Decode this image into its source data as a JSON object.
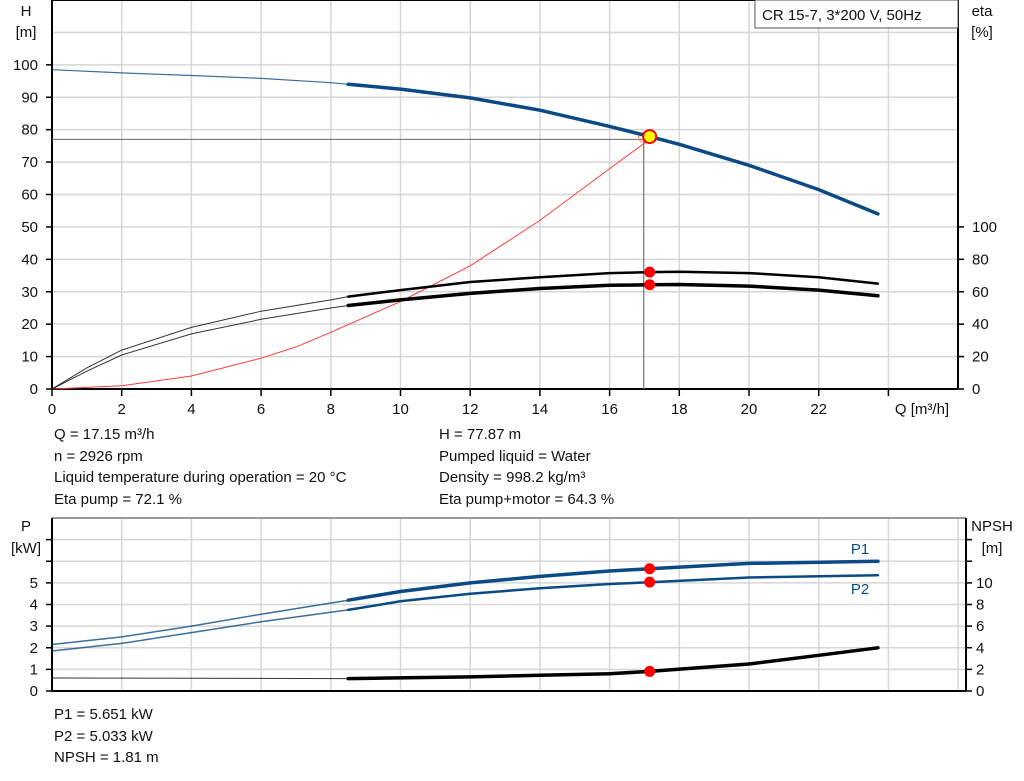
{
  "chart_data": [
    {
      "type": "line",
      "title_box": "CR 15-7, 3*200 V, 50Hz",
      "xlabel": "Q [m³/h]",
      "ylabel_left": [
        "H",
        "[m]"
      ],
      "ylabel_right": [
        "eta",
        "[%]"
      ],
      "xlim": [
        0,
        26
      ],
      "ylim_left": [
        0,
        120
      ],
      "ylim_right": [
        0,
        240
      ],
      "x_ticks": [
        0,
        2,
        4,
        6,
        8,
        10,
        12,
        14,
        16,
        18,
        20,
        22
      ],
      "y_ticks_left": [
        0,
        10,
        20,
        30,
        40,
        50,
        60,
        70,
        80,
        90,
        100
      ],
      "y_ticks_right": [
        0,
        20,
        40,
        60,
        80,
        100
      ],
      "grid": true,
      "duty_point": {
        "Q": 17.15,
        "H": 77.87,
        "eta_pump": 72.1,
        "eta_pump_motor": 64.3
      },
      "series": [
        {
          "key": "H",
          "axis": "left",
          "color": "#0b4a85",
          "x": [
            0,
            2,
            4,
            6,
            8,
            8.5,
            10,
            12,
            14,
            16,
            17.15,
            18,
            20,
            22,
            23.7
          ],
          "y": [
            98.5,
            97.5,
            96.7,
            95.8,
            94.5,
            94,
            92.5,
            89.8,
            86,
            81,
            77.87,
            75.5,
            69,
            61.5,
            54
          ]
        },
        {
          "key": "eta_pump",
          "axis": "right",
          "color": "#000000",
          "x": [
            0,
            1,
            2,
            4,
            6,
            8,
            8.5,
            10,
            12,
            14,
            16,
            17.15,
            18,
            20,
            22,
            23.7
          ],
          "y": [
            0,
            13,
            24,
            38,
            48,
            55,
            57,
            61,
            66,
            69,
            71.5,
            72.1,
            72.3,
            71.5,
            69,
            65
          ]
        },
        {
          "key": "eta_pump_motor",
          "axis": "right",
          "color": "#000000",
          "x": [
            0,
            1,
            2,
            4,
            6,
            8,
            8.5,
            10,
            12,
            14,
            16,
            17.15,
            18,
            20,
            22,
            23.7
          ],
          "y": [
            0,
            11,
            21,
            34,
            43,
            50,
            51.5,
            55,
            59,
            62,
            64,
            64.3,
            64.5,
            63.5,
            61,
            57.5
          ]
        },
        {
          "key": "system",
          "axis": "left",
          "color": "#ff3b3b",
          "x": [
            0,
            2,
            4,
            6,
            7,
            8,
            10,
            12,
            14,
            16,
            17.15
          ],
          "y": [
            0,
            1,
            4,
            9.5,
            13,
            17.5,
            27,
            38,
            52,
            68,
            77
          ]
        }
      ]
    },
    {
      "type": "line",
      "ylabel_left": [
        "P",
        "[kW]"
      ],
      "ylabel_right": [
        "NPSH",
        "[m]"
      ],
      "xlim": [
        0,
        26
      ],
      "ylim_left": [
        0,
        8
      ],
      "ylim_right": [
        0,
        16
      ],
      "y_ticks_left": [
        0,
        1,
        2,
        3,
        4,
        5
      ],
      "y_ticks_right": [
        0,
        2,
        4,
        6,
        8,
        10
      ],
      "grid": true,
      "series": [
        {
          "key": "P1",
          "name": "P1",
          "axis": "left",
          "color": "#0b4a85",
          "x": [
            0,
            2,
            4,
            6,
            8.5,
            10,
            12,
            14,
            16,
            17.15,
            20,
            23.7
          ],
          "y": [
            2.15,
            2.5,
            3.0,
            3.55,
            4.2,
            4.6,
            5.0,
            5.3,
            5.55,
            5.651,
            5.9,
            6.0
          ]
        },
        {
          "key": "P2",
          "name": "P2",
          "axis": "left",
          "color": "#0b4a85",
          "x": [
            0,
            2,
            4,
            6,
            8.5,
            10,
            12,
            14,
            16,
            17.15,
            20,
            23.7
          ],
          "y": [
            1.85,
            2.2,
            2.7,
            3.2,
            3.75,
            4.15,
            4.5,
            4.75,
            4.95,
            5.033,
            5.25,
            5.35
          ]
        },
        {
          "key": "NPSH",
          "axis": "right",
          "color": "#000000",
          "x": [
            0,
            4,
            8.5,
            12,
            14,
            16,
            17.15,
            20,
            22,
            23.7
          ],
          "y": [
            1.2,
            1.18,
            1.15,
            1.3,
            1.45,
            1.6,
            1.81,
            2.5,
            3.3,
            4.0
          ]
        }
      ]
    }
  ],
  "info_top_left": [
    "Q = 17.15 m³/h",
    "n = 2926 rpm",
    "Liquid temperature during operation = 20 °C",
    "Eta pump = 72.1 %"
  ],
  "info_top_right": [
    "H = 77.87 m",
    "Pumped liquid = Water",
    "Density = 998.2 kg/m³",
    "Eta pump+motor = 64.3 %"
  ],
  "info_bottom": [
    "P1 = 5.651 kW",
    "P2 = 5.033 kW",
    "NPSH = 1.81 m"
  ]
}
